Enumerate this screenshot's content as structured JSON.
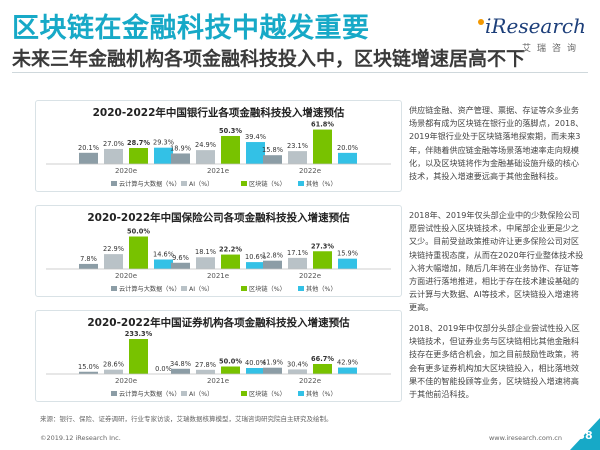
{
  "header": {
    "title": "区块链在金融科技中越发重要",
    "subtitle": "未来三年金融机构各项金融科技投入中，区块链增速居高不下"
  },
  "logo": {
    "main": "iResearch",
    "sub": "艾瑞咨询"
  },
  "colors": {
    "cloud": "#8c9da6",
    "ai": "#b9c2c7",
    "blockchain": "#78c200",
    "other": "#33c1e6",
    "accent": "#17a9c7"
  },
  "legend": [
    "云计算与大数据（%）",
    "AI（%）",
    "区块链（%）",
    "其他（%）"
  ],
  "chart_data": [
    {
      "type": "bar",
      "title": "2020-2022年中国银行业各项金融科技投入增速预估",
      "categories": [
        "2020e",
        "2021e",
        "2022e"
      ],
      "series": [
        {
          "name": "云计算与大数据（%）",
          "values": [
            20.1,
            18.9,
            15.8
          ]
        },
        {
          "name": "AI（%）",
          "values": [
            27.0,
            24.9,
            23.1
          ]
        },
        {
          "name": "区块链（%）",
          "values": [
            28.7,
            50.3,
            61.8
          ]
        },
        {
          "name": "其他（%）",
          "values": [
            29.3,
            39.4,
            20.0
          ]
        }
      ],
      "labels": [
        [
          "20.1%",
          "27.0%",
          "28.7%",
          "29.3%"
        ],
        [
          "18.9%",
          "24.9%",
          "50.3%",
          "39.4%"
        ],
        [
          "15.8%",
          "23.1%",
          "61.8%",
          "20.0%"
        ]
      ],
      "ylim": [
        0,
        70
      ]
    },
    {
      "type": "bar",
      "title": "2020-2022年中国保险公司各项金融科技投入增速预估",
      "categories": [
        "2020e",
        "2021e",
        "2022e"
      ],
      "series": [
        {
          "name": "云计算与大数据（%）",
          "values": [
            7.8,
            9.6,
            12.8
          ]
        },
        {
          "name": "AI（%）",
          "values": [
            22.9,
            18.1,
            17.1
          ]
        },
        {
          "name": "区块链（%）",
          "values": [
            50.0,
            22.2,
            27.3
          ]
        },
        {
          "name": "其他（%）",
          "values": [
            14.6,
            10.6,
            15.9
          ]
        }
      ],
      "labels": [
        [
          "7.8%",
          "22.9%",
          "50.0%",
          "14.6%"
        ],
        [
          "9.6%",
          "18.1%",
          "22.2%",
          "10.6%"
        ],
        [
          "12.8%",
          "17.1%",
          "27.3%",
          "15.9%"
        ]
      ],
      "ylim": [
        0,
        60
      ]
    },
    {
      "type": "bar",
      "title": "2020-2022年中国证券机构各项金融科技投入增速预估",
      "categories": [
        "2020e",
        "2021e",
        "2022e"
      ],
      "series": [
        {
          "name": "云计算与大数据（%）",
          "values": [
            15.0,
            34.8,
            41.9
          ]
        },
        {
          "name": "AI（%）",
          "values": [
            28.6,
            27.8,
            30.4
          ]
        },
        {
          "name": "区块链（%）",
          "values": [
            233.3,
            50.0,
            66.7
          ]
        },
        {
          "name": "其他（%）",
          "values": [
            0.0,
            40.0,
            42.9
          ]
        }
      ],
      "labels": [
        [
          "15.0%",
          "28.6%",
          "233.3%",
          "0.0%"
        ],
        [
          "34.8%",
          "27.8%",
          "50.0%",
          "40.0%"
        ],
        [
          "41.9%",
          "30.4%",
          "66.7%",
          "42.9%"
        ]
      ],
      "ylim": [
        0,
        260
      ]
    }
  ],
  "descriptions": [
    "供应链金融、资产管理、票据、存证等众多业务场景都有成为区块链在银行业的落脚点，2018、2019年银行业处于区块链落地探索期，而未来3年，伴随着供应链金融等场景落地速率走向规模化，以及区块链将作为金融基础设施升级的核心技术，其投入增速要远高于其他金融科技。",
    "2018年、2019年仅头部企业中的少数保险公司愿尝试性投入区块链技术，中尾部企业更是少之又少。目前受益政策推动许让更多保险公司对区块链持重视态度，从而在2020年行业整体技术投入将大幅增加，随后几年将在业务协作、存证等方面进行落地推进，相比于存在技术建设基础的云计算与大数据、AI等技术，区块链投入增速将更高。",
    "2018、2019年中仅部分头部企业尝试性投入区块链技术，但证券业务与区块链相比其他金融科技存在更多结合机会，加之目前鼓励性政策，将会有更多证券机构加大区块链投入，相比落地效果不佳的智能投顾等业务，区块链投入增速将高于其他前沿科技。"
  ],
  "footer": {
    "source": "来源：银行、保险、证券调研，行业专家访谈，艾瑞数据核算模型，艾瑞咨询研究院自主研究及绘制。",
    "copyright": "©2019.12 iResearch Inc.",
    "website": "www.iresearch.com.cn",
    "page": "38"
  }
}
